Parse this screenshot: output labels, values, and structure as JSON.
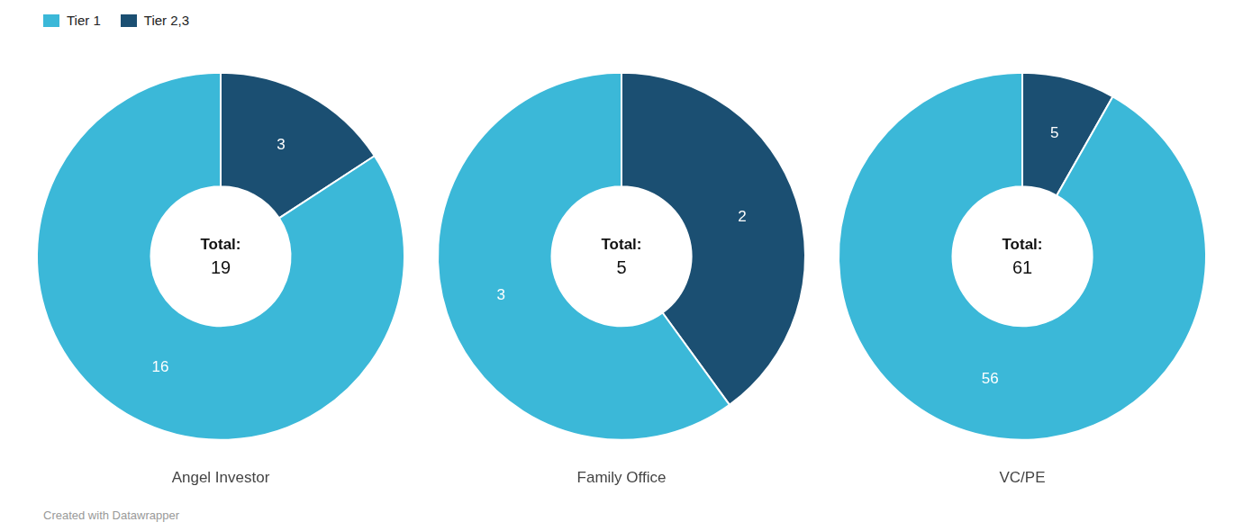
{
  "chart_data": [
    {
      "type": "doughnut",
      "title": "Angel Investor",
      "categories": [
        "Tier 2,3",
        "Tier 1"
      ],
      "values": [
        3,
        16
      ],
      "colors": [
        "#1B4F72",
        "#3BB8D8"
      ],
      "data_labels": true,
      "center_label": "Total:",
      "total": 19
    },
    {
      "type": "doughnut",
      "title": "Family Office",
      "categories": [
        "Tier 2,3",
        "Tier 1"
      ],
      "values": [
        2,
        3
      ],
      "colors": [
        "#1B4F72",
        "#3BB8D8"
      ],
      "data_labels": true,
      "center_label": "Total:",
      "total": 5
    },
    {
      "type": "doughnut",
      "title": "VC/PE",
      "categories": [
        "Tier 2,3",
        "Tier 1"
      ],
      "values": [
        5,
        56
      ],
      "colors": [
        "#1B4F72",
        "#3BB8D8"
      ],
      "data_labels": true,
      "center_label": "Total:",
      "total": 61
    }
  ],
  "legend": "upper left",
  "series": [
    {
      "name": "Tier 1",
      "color": "#3BB8D8"
    },
    {
      "name": "Tier 2,3",
      "color": "#1B4F72"
    }
  ],
  "annotations": [
    {
      "text": "Created with Datawrapper"
    }
  ]
}
